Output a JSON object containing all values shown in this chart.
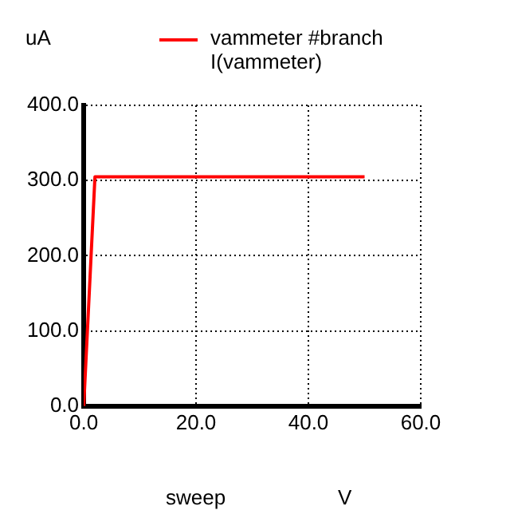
{
  "chart_data": {
    "type": "line",
    "ylabel": "uA",
    "xlabel": "sweep",
    "annotations": [
      "I(vammeter)",
      "V"
    ],
    "series": [
      {
        "name": "vammeter #branch",
        "color": "#ff0000",
        "x": [
          0,
          2,
          50
        ],
        "values": [
          0,
          305,
          305
        ]
      }
    ],
    "xlim": [
      0,
      60
    ],
    "xticks": [
      {
        "value": 0,
        "label": "0.0"
      },
      {
        "value": 20,
        "label": "20.0"
      },
      {
        "value": 40,
        "label": "40.0"
      },
      {
        "value": 60,
        "label": "60.0"
      }
    ],
    "ylim": [
      0,
      400
    ],
    "yticks": [
      {
        "value": 0,
        "label": "0.0"
      },
      {
        "value": 100,
        "label": "100.0"
      },
      {
        "value": 200,
        "label": "200.0"
      },
      {
        "value": 300,
        "label": "300.0"
      },
      {
        "value": 400,
        "label": "400.0"
      }
    ],
    "grid": true,
    "legend": "top",
    "marker": "none",
    "line_style": "solid"
  }
}
